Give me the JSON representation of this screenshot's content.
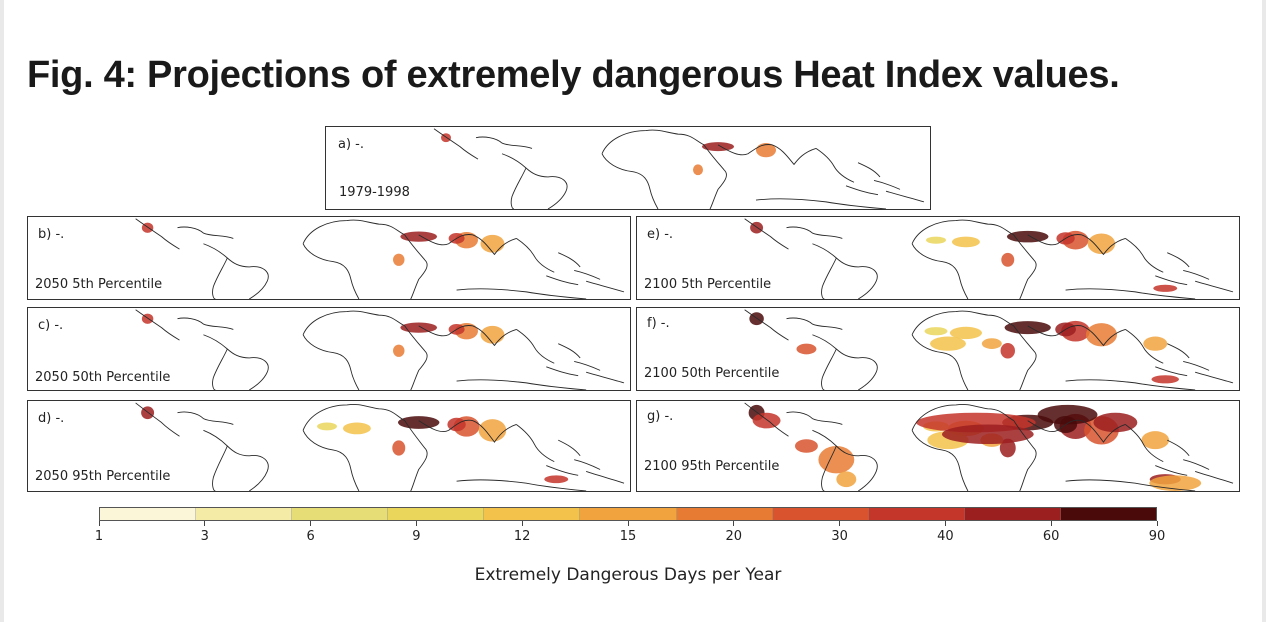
{
  "figure": {
    "title": "Fig. 4: Projections of extremely dangerous Heat Index values."
  },
  "panels": [
    {
      "id": "a",
      "letter": "a) -.",
      "caption": "1979-1998",
      "intensity": 0
    },
    {
      "id": "b",
      "letter": "b) -.",
      "caption": "2050 5th Percentile",
      "intensity": 1
    },
    {
      "id": "c",
      "letter": "c) -.",
      "caption": "2050 50th Percentile",
      "intensity": 1
    },
    {
      "id": "d",
      "letter": "d) -.",
      "caption": "2050 95th Percentile",
      "intensity": 2
    },
    {
      "id": "e",
      "letter": "e) -.",
      "caption": "2100 5th Percentile",
      "intensity": 2
    },
    {
      "id": "f",
      "letter": "f) -.",
      "caption": "2100 50th Percentile",
      "intensity": 3
    },
    {
      "id": "g",
      "letter": "g) -.",
      "caption": "2100 95th Percentile",
      "intensity": 4
    }
  ],
  "colorbar": {
    "label": "Extremely Dangerous Days per Year",
    "ticks": [
      "1",
      "3",
      "6",
      "9",
      "12",
      "15",
      "20",
      "30",
      "40",
      "60",
      "90"
    ],
    "colors": [
      "#fbf6d8",
      "#f3eba6",
      "#e6dd77",
      "#ead65a",
      "#f3c24a",
      "#f1a33e",
      "#e77b34",
      "#d8532e",
      "#c4352a",
      "#9c1f20",
      "#4a0a0a"
    ]
  }
}
